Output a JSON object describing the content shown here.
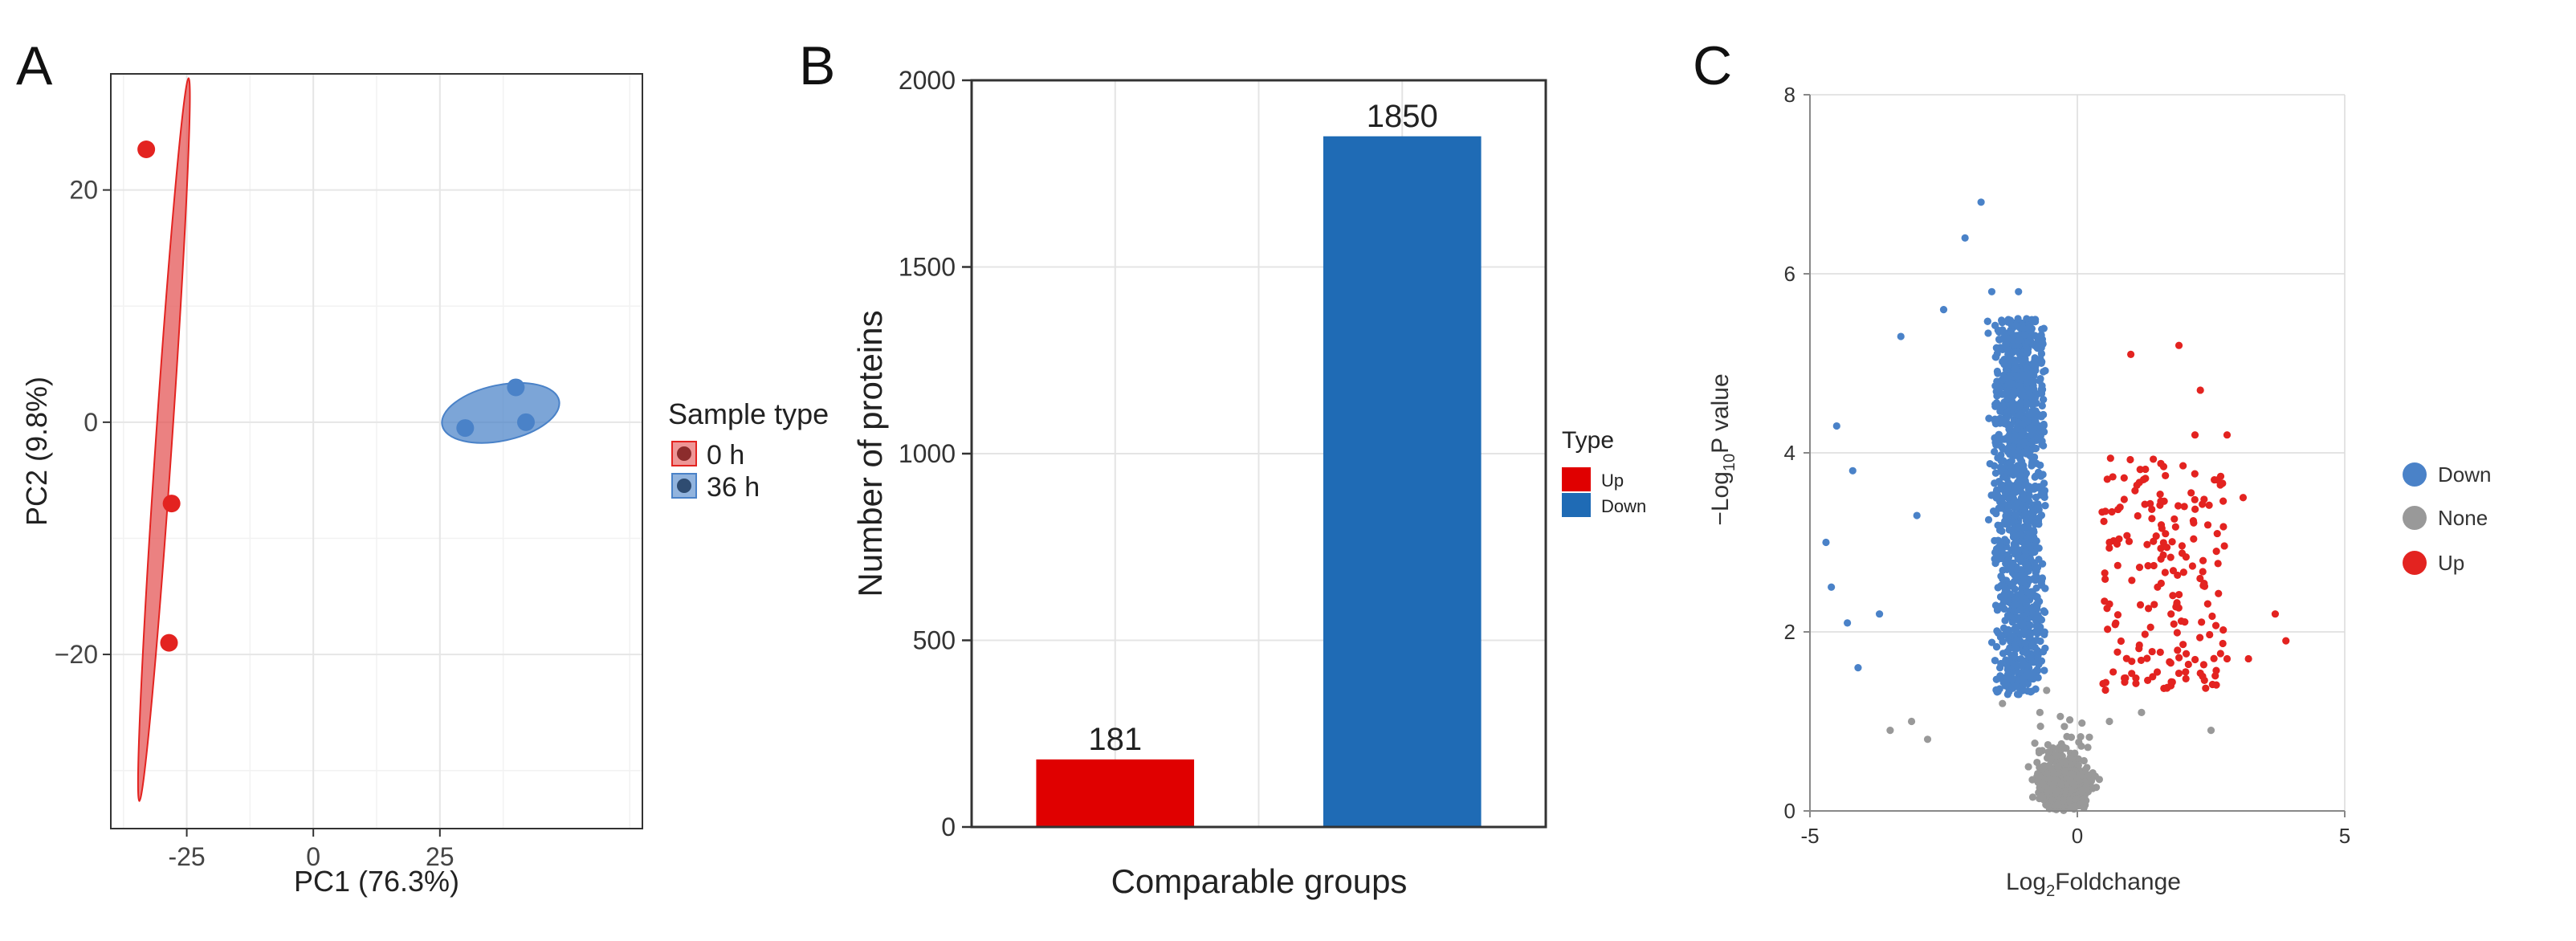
{
  "colors": {
    "red": "#e32320",
    "red_ellipse": "#e35050",
    "blue": "#4a82c8",
    "blue_bar": "#1f6bb5",
    "gray": "#999999",
    "grid": "#e6e6e6",
    "axis": "#333333"
  },
  "chart_data": [
    {
      "panel_letter": "A",
      "type": "scatter",
      "xlabel": "PC1 (76.3%)",
      "ylabel": "PC2 (9.8%)",
      "xlim": [
        -40,
        65
      ],
      "ylim": [
        -35,
        30
      ],
      "xticks": [
        "-25",
        "0",
        "25"
      ],
      "xtick_values": [
        -25,
        0,
        25
      ],
      "yticks": [
        "20",
        "0",
        "−20"
      ],
      "ytick_values": [
        20,
        0,
        -20
      ],
      "grid": true,
      "legend_title": "Sample type",
      "legend_position": "right",
      "series": [
        {
          "name": "0 h",
          "color": "#e32320",
          "points": [
            [
              -33,
              23.5
            ],
            [
              -28,
              -7
            ],
            [
              -28.5,
              -19
            ]
          ],
          "ellipse": {
            "cx": -29.5,
            "cy": -1.5,
            "rx": 1.6,
            "ry": 31.2,
            "angle": 3.9
          }
        },
        {
          "name": "36 h",
          "color": "#4a82c8",
          "points": [
            [
              30,
              -0.5
            ],
            [
              40,
              3
            ],
            [
              42,
              0
            ]
          ],
          "ellipse": {
            "cx": 37,
            "cy": 0.8,
            "rx": 11.8,
            "ry": 2.4,
            "angle": 12
          }
        }
      ]
    },
    {
      "panel_letter": "B",
      "type": "bar",
      "xlabel": "Comparable groups",
      "ylabel": "Number of proteins",
      "ylim": [
        0,
        2000
      ],
      "yticks": [
        "0",
        "500",
        "1000",
        "1500",
        "2000"
      ],
      "ytick_values": [
        0,
        500,
        1000,
        1500,
        2000
      ],
      "categories": [
        "Up",
        "Down"
      ],
      "values": [
        181,
        1850
      ],
      "data_labels": [
        "181",
        "1850"
      ],
      "bar_colors": [
        "#e00000",
        "#1f6bb5"
      ],
      "grid": true,
      "legend_title": "Type",
      "legend_position": "right",
      "legend": [
        {
          "name": "Up",
          "color": "#e00000"
        },
        {
          "name": "Down",
          "color": "#1f6bb5"
        }
      ]
    },
    {
      "panel_letter": "C",
      "type": "scatter",
      "xlabel_parts": [
        "Log",
        "2",
        "Foldchange"
      ],
      "ylabel_parts": [
        "−Log",
        "10",
        "P value"
      ],
      "xlim": [
        -5,
        5
      ],
      "ylim": [
        0,
        8
      ],
      "xticks": [
        "-5",
        "0",
        "5"
      ],
      "xtick_values": [
        -5,
        0,
        5
      ],
      "yticks": [
        "0",
        "2",
        "4",
        "6",
        "8"
      ],
      "ytick_values": [
        0,
        2,
        4,
        6,
        8
      ],
      "grid": true,
      "legend_position": "right",
      "legend": [
        {
          "name": "Down",
          "color": "#4a82c8"
        },
        {
          "name": "None",
          "color": "#999999"
        },
        {
          "name": "Up",
          "color": "#e32320"
        }
      ],
      "series": [
        {
          "name": "Down",
          "color": "#4a82c8",
          "count": 1850,
          "points": [
            [
              -1.8,
              6.8
            ],
            [
              -2.1,
              6.4
            ],
            [
              -2.5,
              5.6
            ],
            [
              -1.6,
              5.8
            ],
            [
              -1.1,
              5.8
            ],
            [
              -3.3,
              5.3
            ],
            [
              -4.5,
              4.3
            ],
            [
              -4.2,
              3.8
            ],
            [
              -3.0,
              3.3
            ],
            [
              -4.7,
              3.0
            ],
            [
              -4.6,
              2.5
            ],
            [
              -4.3,
              2.1
            ],
            [
              -4.1,
              1.6
            ],
            [
              -3.7,
              2.2
            ]
          ]
        },
        {
          "name": "Up",
          "color": "#e32320",
          "count": 181,
          "points": [
            [
              1.0,
              5.1
            ],
            [
              1.9,
              5.2
            ],
            [
              2.3,
              4.7
            ],
            [
              2.2,
              4.2
            ],
            [
              2.8,
              4.2
            ],
            [
              3.1,
              3.5
            ],
            [
              3.7,
              2.2
            ],
            [
              3.9,
              1.9
            ],
            [
              2.8,
              1.7
            ],
            [
              3.2,
              1.7
            ],
            [
              0.6,
              3.0
            ],
            [
              1.5,
              2.5
            ],
            [
              2.0,
              3.4
            ],
            [
              2.6,
              2.9
            ]
          ]
        },
        {
          "name": "None",
          "color": "#999999",
          "count": 1000,
          "points": [
            [
              -0.3,
              0.3
            ],
            [
              0.2,
              0.4
            ],
            [
              -0.7,
              1.1
            ],
            [
              0.6,
              1.0
            ],
            [
              -1.4,
              1.2
            ],
            [
              1.2,
              1.1
            ],
            [
              -2.8,
              0.8
            ],
            [
              2.5,
              0.9
            ],
            [
              -3.1,
              1.0
            ],
            [
              -3.5,
              0.9
            ]
          ]
        }
      ]
    }
  ]
}
